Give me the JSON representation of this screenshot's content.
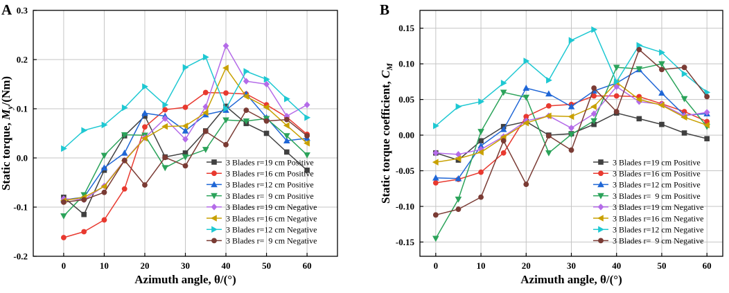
{
  "chart_data": [
    {
      "panel_label": "A",
      "type": "line",
      "xlabel": "Azimuth angle, θ/(°)",
      "ylabel": "Static torque, My/(Nm)",
      "xlim": [
        -7.5,
        67.5
      ],
      "ylim": [
        -0.2,
        0.3
      ],
      "xticks": [
        0,
        10,
        20,
        30,
        40,
        50,
        60
      ],
      "yticks": [
        -0.2,
        -0.1,
        0.0,
        0.1,
        0.2,
        0.3
      ],
      "ytick_decimals": 1,
      "grid": true,
      "legend_position": "bottom-right",
      "x": [
        0,
        5,
        10,
        15,
        20,
        25,
        30,
        35,
        40,
        45,
        50,
        55,
        60
      ],
      "series": [
        {
          "name": "3 Blades r=19 cm Positive",
          "color": "#404040",
          "marker": "square",
          "values": [
            -0.08,
            -0.115,
            -0.025,
            0.045,
            0.085,
            0.002,
            0.01,
            0.055,
            0.105,
            0.07,
            0.05,
            0.012,
            -0.025
          ]
        },
        {
          "name": "3 Blades r=16 cm Positive",
          "color": "#e8392f",
          "marker": "circle",
          "values": [
            -0.162,
            -0.15,
            -0.126,
            -0.063,
            0.063,
            0.098,
            0.103,
            0.133,
            0.132,
            0.13,
            0.108,
            0.083,
            0.048
          ]
        },
        {
          "name": "3 Blades r=12 cm Positive",
          "color": "#1f66d6",
          "marker": "triangle-up",
          "values": [
            -0.085,
            -0.08,
            -0.02,
            0.01,
            0.091,
            0.085,
            0.055,
            0.088,
            0.097,
            0.13,
            0.082,
            0.035,
            0.04
          ]
        },
        {
          "name": "3 Blades r=  9 cm Positive",
          "color": "#2ba35a",
          "marker": "triangle-down",
          "values": [
            -0.118,
            -0.075,
            0.005,
            0.047,
            0.046,
            -0.02,
            0.002,
            0.017,
            0.077,
            0.075,
            0.08,
            0.045,
            0.006
          ]
        },
        {
          "name": "3 Blades r=19 cm Negative",
          "color": "#b46be8",
          "marker": "diamond",
          "values": [
            -0.083,
            -0.085,
            -0.057,
            -0.005,
            0.041,
            0.08,
            0.038,
            0.104,
            0.228,
            0.156,
            0.15,
            0.085,
            0.108
          ]
        },
        {
          "name": "3 Blades r=16 cm Negative",
          "color": "#c8a000",
          "marker": "triangle-left",
          "values": [
            -0.087,
            -0.08,
            -0.058,
            -0.006,
            0.04,
            0.064,
            0.065,
            0.092,
            0.183,
            0.125,
            0.103,
            0.066,
            0.03
          ]
        },
        {
          "name": "3 Blades r=12 cm Negative",
          "color": "#1ec8d2",
          "marker": "triangle-right",
          "values": [
            0.019,
            0.056,
            0.067,
            0.102,
            0.145,
            0.108,
            0.184,
            0.205,
            0.1,
            0.176,
            0.16,
            0.12,
            0.082
          ]
        },
        {
          "name": "3 Blades r=  9 cm Negative",
          "color": "#7a3b34",
          "marker": "circle",
          "values": [
            -0.09,
            -0.085,
            -0.07,
            -0.005,
            -0.055,
            0.001,
            -0.016,
            0.054,
            0.027,
            0.097,
            0.075,
            0.078,
            0.045
          ]
        }
      ]
    },
    {
      "panel_label": "B",
      "type": "line",
      "xlabel": "Azimuth angle, θ/(°)",
      "ylabel": "Static torque coefficient, CM",
      "xlim": [
        -3.5,
        63.5
      ],
      "ylim": [
        -0.17,
        0.175
      ],
      "xticks": [
        0,
        10,
        20,
        30,
        40,
        50,
        60
      ],
      "yticks": [
        -0.15,
        -0.1,
        -0.05,
        0.0,
        0.05,
        0.1,
        0.15
      ],
      "ytick_decimals": 2,
      "grid": true,
      "legend_position": "bottom-right",
      "x": [
        0,
        5,
        10,
        15,
        20,
        25,
        30,
        35,
        40,
        45,
        50,
        55,
        60
      ],
      "series": [
        {
          "name": "3 Blades r=19 cm Positive",
          "color": "#404040",
          "marker": "square",
          "values": [
            -0.025,
            -0.035,
            -0.008,
            0.012,
            0.019,
            0.0,
            0.002,
            0.015,
            0.031,
            0.023,
            0.015,
            0.003,
            -0.005
          ]
        },
        {
          "name": "3 Blades r=16 cm Positive",
          "color": "#e8392f",
          "marker": "circle",
          "values": [
            -0.067,
            -0.062,
            -0.052,
            -0.025,
            0.026,
            0.041,
            0.043,
            0.055,
            0.055,
            0.054,
            0.044,
            0.033,
            0.019
          ]
        },
        {
          "name": "3 Blades r=12 cm Positive",
          "color": "#1f66d6",
          "marker": "triangle-up",
          "values": [
            -0.06,
            -0.061,
            -0.015,
            0.008,
            0.066,
            0.058,
            0.04,
            0.062,
            0.073,
            0.092,
            0.059,
            0.028,
            0.03
          ]
        },
        {
          "name": "3 Blades r=  9 cm Positive",
          "color": "#2ba35a",
          "marker": "triangle-down",
          "values": [
            -0.145,
            -0.09,
            0.005,
            0.06,
            0.053,
            -0.025,
            0.001,
            0.02,
            0.095,
            0.093,
            0.1,
            0.051,
            0.012
          ]
        },
        {
          "name": "3 Blades r=19 cm Negative",
          "color": "#b46be8",
          "marker": "diamond",
          "values": [
            -0.025,
            -0.027,
            -0.02,
            -0.002,
            0.02,
            0.027,
            0.01,
            0.03,
            0.068,
            0.047,
            0.043,
            0.027,
            0.032
          ]
        },
        {
          "name": "3 Blades r=16 cm Negative",
          "color": "#c8a000",
          "marker": "triangle-left",
          "values": [
            -0.038,
            -0.033,
            -0.024,
            -0.003,
            0.017,
            0.027,
            0.026,
            0.04,
            0.074,
            0.05,
            0.042,
            0.025,
            0.014
          ]
        },
        {
          "name": "3 Blades r=12 cm Negative",
          "color": "#1ec8d2",
          "marker": "triangle-right",
          "values": [
            0.013,
            0.04,
            0.047,
            0.073,
            0.104,
            0.077,
            0.133,
            0.148,
            0.075,
            0.126,
            0.116,
            0.086,
            0.06
          ]
        },
        {
          "name": "3 Blades r=  9 cm Negative",
          "color": "#7a3b34",
          "marker": "circle",
          "values": [
            -0.112,
            -0.104,
            -0.087,
            -0.008,
            -0.069,
            -0.001,
            -0.021,
            0.066,
            0.033,
            0.12,
            0.092,
            0.095,
            0.054
          ]
        }
      ]
    }
  ]
}
